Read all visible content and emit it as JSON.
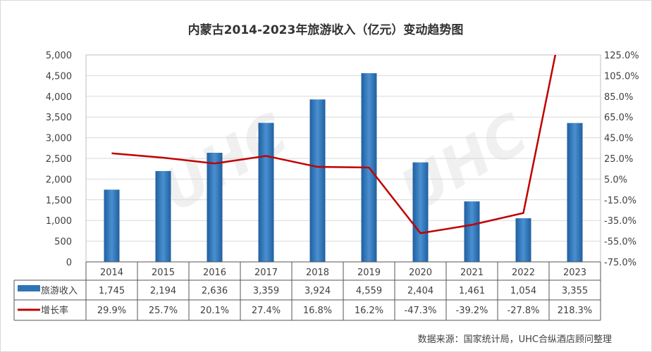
{
  "chart_data": {
    "type": "bar+line",
    "title": "内蒙古2014-2023年旅游收入（亿元）变动趋势图",
    "categories": [
      "2014",
      "2015",
      "2016",
      "2017",
      "2018",
      "2019",
      "2020",
      "2021",
      "2022",
      "2023"
    ],
    "series": [
      {
        "name": "旅游收入",
        "type": "bar",
        "axis": "left",
        "color": "#2e75b6",
        "values": [
          1745,
          2194,
          2636,
          3359,
          3924,
          4559,
          2404,
          1461,
          1054,
          3355
        ],
        "labels": [
          "1,745",
          "2,194",
          "2,636",
          "3,359",
          "3,924",
          "4,559",
          "2,404",
          "1,461",
          "1,054",
          "3,355"
        ]
      },
      {
        "name": "增长率",
        "type": "line",
        "axis": "right",
        "color": "#c00000",
        "values": [
          29.9,
          25.7,
          20.1,
          27.4,
          16.8,
          16.2,
          -47.3,
          -39.2,
          -27.8,
          218.3
        ],
        "labels": [
          "29.9%",
          "25.7%",
          "20.1%",
          "27.4%",
          "16.8%",
          "16.2%",
          "-47.3%",
          "-39.2%",
          "-27.8%",
          "218.3%"
        ]
      }
    ],
    "left_axis": {
      "min": 0,
      "max": 5000,
      "step": 500,
      "ticks": [
        "0",
        "500",
        "1,000",
        "1,500",
        "2,000",
        "2,500",
        "3,000",
        "3,500",
        "4,000",
        "4,500",
        "5,000"
      ]
    },
    "right_axis": {
      "min": -75,
      "max": 125,
      "step": 20,
      "ticks": [
        "-75.0%",
        "-55.0%",
        "-35.0%",
        "-15.0%",
        "5.0%",
        "25.0%",
        "45.0%",
        "65.0%",
        "85.0%",
        "105.0%",
        "125.0%"
      ]
    },
    "grid": true,
    "legend": "data-table",
    "source": "数据来源：国家统计局，UHC合纵酒店顾问整理"
  }
}
